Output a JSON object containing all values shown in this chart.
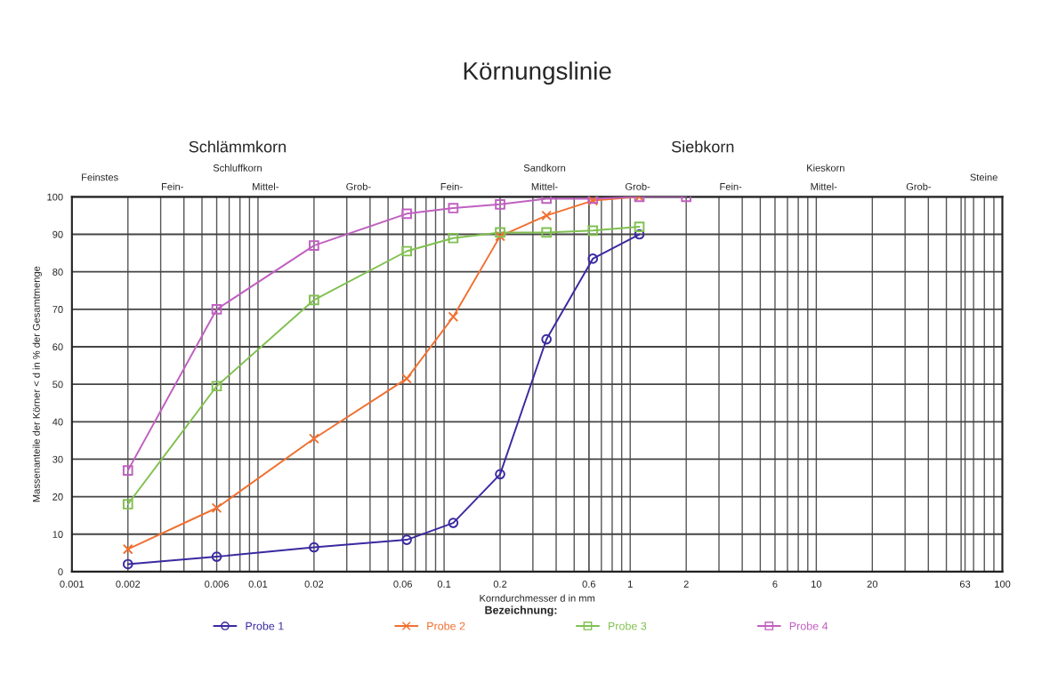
{
  "chart_data": {
    "type": "line",
    "title": "Körnungslinie",
    "xlabel": "Korndurchmesser d in mm",
    "ylabel": "Massenanteile der Körner < d in % der Gesamtmenge",
    "legend_title": "Bezeichnung:",
    "legend": "bottom",
    "log": "x",
    "grid": true,
    "line_style": "solid",
    "xlim": [
      0.001,
      100
    ],
    "xticks": [
      0.001,
      0.002,
      0.006,
      0.01,
      0.02,
      0.06,
      0.1,
      0.2,
      0.6,
      1,
      2,
      6,
      10,
      20,
      63,
      100
    ],
    "ylim": [
      0,
      100
    ],
    "yticks": [
      0,
      10,
      20,
      30,
      40,
      50,
      60,
      70,
      80,
      90,
      100
    ],
    "annotations": [
      "Schlämmkorn",
      "Siebkorn",
      "Feinstes",
      "Schluffkorn",
      "Fein-",
      "Mittel-",
      "Grob-",
      "Sandkorn",
      "Fein-",
      "Mittel-",
      "Grob-",
      "Kieskorn",
      "Fein-",
      "Mittel-",
      "Grob-",
      "Steine"
    ],
    "series": [
      {
        "name": "Probe 1",
        "color": "#3a2aa0",
        "marker": "circle",
        "x": [
          0.002,
          0.006,
          0.02,
          0.063,
          0.112,
          0.2,
          0.355,
          0.63,
          1.12
        ],
        "values": [
          2,
          4,
          6.5,
          8.5,
          13,
          26,
          62,
          83.5,
          90
        ]
      },
      {
        "name": "Probe 2",
        "color": "#f07030",
        "marker": "cross",
        "x": [
          0.002,
          0.006,
          0.02,
          0.063,
          0.112,
          0.2,
          0.355,
          0.63,
          1.12
        ],
        "values": [
          6,
          17,
          35.5,
          51.5,
          68,
          89.5,
          95,
          99,
          100
        ]
      },
      {
        "name": "Probe 3",
        "color": "#80c050",
        "marker": "square",
        "x": [
          0.002,
          0.006,
          0.02,
          0.063,
          0.112,
          0.2,
          0.355,
          0.63,
          1.12
        ],
        "values": [
          18,
          49.5,
          72.5,
          85.5,
          89,
          90.5,
          90.5,
          91,
          92
        ]
      },
      {
        "name": "Probe 4",
        "color": "#c060c0",
        "marker": "square",
        "x": [
          0.002,
          0.006,
          0.02,
          0.063,
          0.112,
          0.2,
          0.355,
          0.63,
          1.12,
          2
        ],
        "values": [
          27,
          70,
          87,
          95.5,
          97,
          98,
          99.5,
          99.5,
          100,
          100
        ]
      }
    ]
  }
}
